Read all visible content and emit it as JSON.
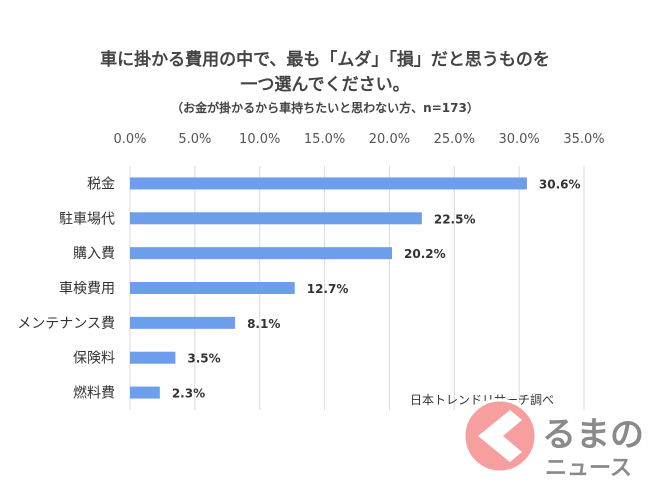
{
  "chart_data": {
    "type": "bar",
    "orientation": "horizontal",
    "title_line1": "車に掛かる費用の中で、最も「ムダ」「損」だと思うものを",
    "title_line2": "一つ選んでください。",
    "subtitle": "（お金が掛かるから車持ちたいと思わない方、n=173）",
    "categories": [
      "税金",
      "駐車場代",
      "購入費",
      "車検費用",
      "メンテナンス費",
      "保険料",
      "燃料費"
    ],
    "values": [
      30.6,
      22.5,
      20.2,
      12.7,
      8.1,
      3.5,
      2.3
    ],
    "value_labels": [
      "30.6%",
      "22.5%",
      "20.2%",
      "12.7%",
      "8.1%",
      "3.5%",
      "2.3%"
    ],
    "xticks": [
      "0.0%",
      "5.0%",
      "10.0%",
      "15.0%",
      "20.0%",
      "25.0%",
      "30.0%",
      "35.0%"
    ],
    "xlim": [
      0,
      35
    ],
    "grid": true,
    "bar_color": "#6d9eeb",
    "source": "日本トレンドリサーチ調べ"
  },
  "logo": {
    "text": "くるまのニュース"
  }
}
